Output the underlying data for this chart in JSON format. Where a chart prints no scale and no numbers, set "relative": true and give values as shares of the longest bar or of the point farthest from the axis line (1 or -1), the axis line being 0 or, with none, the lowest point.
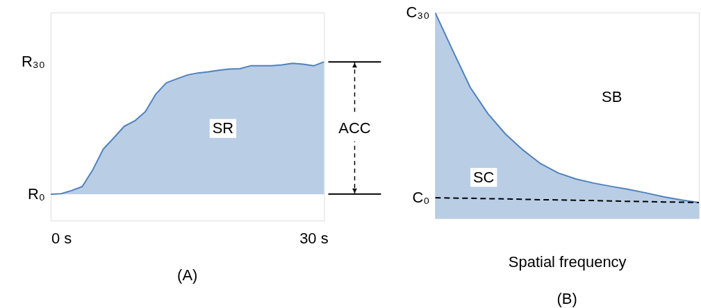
{
  "chart_data": [
    {
      "type": "area",
      "title": "(A)",
      "relative": true,
      "categories": [
        null,
        "0 s",
        null,
        null,
        null,
        null,
        null,
        null,
        null,
        null,
        null,
        null,
        null,
        null,
        null,
        null,
        null,
        null,
        null,
        null,
        null,
        null,
        null,
        null,
        null,
        "30 s",
        null
      ],
      "series": [
        {
          "color": "#4f81bd",
          "values": [
            0.166,
            0.169,
            0.189,
            0.214,
            0.319,
            0.45,
            0.521,
            0.594,
            0.628,
            0.686,
            0.797,
            0.868,
            0.893,
            0.917,
            0.93,
            0.937,
            0.947,
            0.955,
            0.957,
            0.975,
            0.975,
            0.975,
            0.981,
            0.991,
            0.985,
            0.975,
            1.0
          ]
        }
      ],
      "annotations": [
        "R₀",
        "R₃₀",
        "SR",
        "ACC"
      ]
    },
    {
      "type": "area",
      "title": "(B)",
      "xlabel": "Spatial frequency",
      "relative": true,
      "categories": [
        null,
        null,
        null,
        null,
        null,
        null,
        null,
        null,
        null,
        null,
        null,
        null,
        null,
        null,
        null,
        null
      ],
      "series": [
        {
          "color": "#4f81bd",
          "values": [
            1.0,
            0.816,
            0.636,
            0.509,
            0.41,
            0.332,
            0.266,
            0.221,
            0.192,
            0.172,
            0.156,
            0.141,
            0.124,
            0.105,
            0.09,
            0.077
          ]
        },
        {
          "type": "line",
          "line_style": "dashed",
          "color": "#000000",
          "values": [
            0.101,
            0.099,
            0.098,
            0.096,
            0.095,
            0.093,
            0.091,
            0.09,
            0.088,
            0.087,
            0.085,
            0.083,
            0.082,
            0.08,
            0.079,
            0.077
          ]
        }
      ],
      "annotations": [
        "C₀",
        "C₃₀",
        "SC",
        "SB"
      ]
    }
  ]
}
